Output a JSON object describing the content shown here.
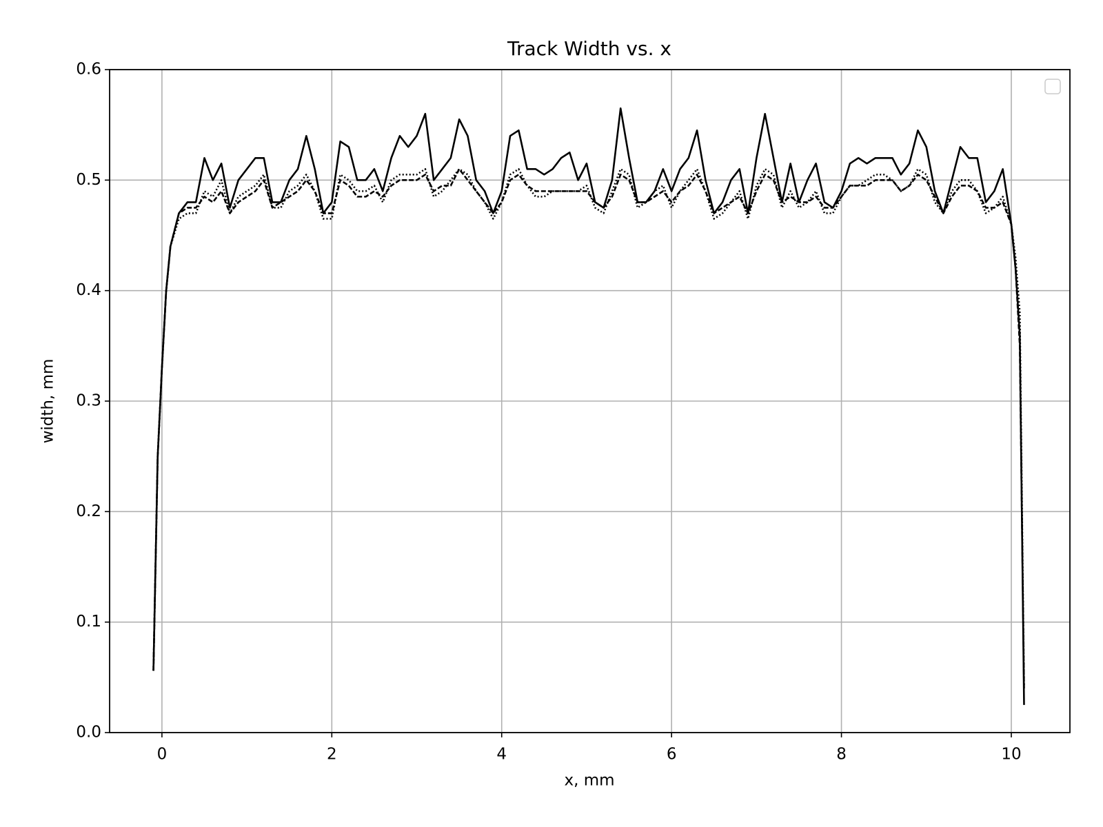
{
  "chart_data": {
    "type": "line",
    "title": "Track Width vs. x",
    "xlabel": "x, mm",
    "ylabel": "width, mm",
    "xlim": [
      -0.616,
      10.69
    ],
    "ylim": [
      0,
      0.6
    ],
    "xticks": [
      0,
      2,
      4,
      6,
      8,
      10
    ],
    "yticks": [
      {
        "value": 0,
        "label": "0.0"
      },
      0.1,
      0.2,
      0.3,
      0.4,
      0.5,
      0.6
    ],
    "grid": true,
    "x": [
      -0.1,
      -0.05,
      0,
      0.05,
      0.1,
      0.2,
      0.3,
      0.4,
      0.5,
      0.6,
      0.7,
      0.8,
      0.9,
      1.0,
      1.1,
      1.2,
      1.3,
      1.4,
      1.5,
      1.6,
      1.7,
      1.8,
      1.9,
      2.0,
      2.1,
      2.2,
      2.3,
      2.4,
      2.5,
      2.6,
      2.7,
      2.8,
      2.9,
      3.0,
      3.1,
      3.2,
      3.3,
      3.4,
      3.5,
      3.6,
      3.7,
      3.8,
      3.9,
      4.0,
      4.1,
      4.2,
      4.3,
      4.4,
      4.5,
      4.6,
      4.7,
      4.8,
      4.9,
      5.0,
      5.1,
      5.2,
      5.3,
      5.4,
      5.5,
      5.6,
      5.7,
      5.8,
      5.9,
      6.0,
      6.1,
      6.2,
      6.3,
      6.4,
      6.5,
      6.6,
      6.7,
      6.8,
      6.9,
      7.0,
      7.1,
      7.2,
      7.3,
      7.4,
      7.5,
      7.6,
      7.7,
      7.8,
      7.9,
      8.0,
      8.1,
      8.2,
      8.3,
      8.4,
      8.5,
      8.6,
      8.7,
      8.8,
      8.9,
      9.0,
      9.1,
      9.2,
      9.3,
      9.4,
      9.5,
      9.6,
      9.7,
      9.8,
      9.9,
      10.0,
      10.05,
      10.1,
      10.15
    ],
    "series": [
      {
        "color": "#000000",
        "linestyle": "solid",
        "values": [
          0.056,
          0.25,
          0.33,
          0.4,
          0.44,
          0.47,
          0.48,
          0.48,
          0.52,
          0.5,
          0.515,
          0.475,
          0.5,
          0.51,
          0.52,
          0.52,
          0.48,
          0.48,
          0.5,
          0.51,
          0.54,
          0.51,
          0.47,
          0.48,
          0.535,
          0.53,
          0.5,
          0.5,
          0.51,
          0.49,
          0.52,
          0.54,
          0.53,
          0.54,
          0.56,
          0.5,
          0.51,
          0.52,
          0.555,
          0.54,
          0.5,
          0.49,
          0.47,
          0.49,
          0.54,
          0.545,
          0.51,
          0.51,
          0.505,
          0.51,
          0.52,
          0.525,
          0.5,
          0.515,
          0.48,
          0.475,
          0.5,
          0.565,
          0.52,
          0.48,
          0.48,
          0.49,
          0.51,
          0.49,
          0.51,
          0.52,
          0.545,
          0.5,
          0.47,
          0.48,
          0.5,
          0.51,
          0.47,
          0.52,
          0.56,
          0.52,
          0.48,
          0.515,
          0.48,
          0.5,
          0.515,
          0.48,
          0.475,
          0.49,
          0.515,
          0.52,
          0.515,
          0.52,
          0.52,
          0.52,
          0.505,
          0.515,
          0.545,
          0.53,
          0.49,
          0.47,
          0.5,
          0.53,
          0.52,
          0.52,
          0.48,
          0.49,
          0.51,
          0.46,
          0.42,
          0.36,
          0.025
        ]
      },
      {
        "color": "#000000",
        "linestyle": "dashed",
        "values": [
          0.056,
          0.25,
          0.33,
          0.4,
          0.44,
          0.47,
          0.475,
          0.475,
          0.485,
          0.48,
          0.49,
          0.47,
          0.48,
          0.485,
          0.49,
          0.5,
          0.475,
          0.48,
          0.485,
          0.49,
          0.5,
          0.49,
          0.47,
          0.47,
          0.5,
          0.495,
          0.485,
          0.485,
          0.49,
          0.485,
          0.495,
          0.5,
          0.5,
          0.5,
          0.505,
          0.49,
          0.495,
          0.495,
          0.51,
          0.5,
          0.49,
          0.48,
          0.47,
          0.48,
          0.5,
          0.505,
          0.495,
          0.49,
          0.49,
          0.49,
          0.49,
          0.49,
          0.49,
          0.49,
          0.48,
          0.475,
          0.485,
          0.505,
          0.5,
          0.48,
          0.48,
          0.485,
          0.49,
          0.48,
          0.49,
          0.495,
          0.505,
          0.49,
          0.47,
          0.475,
          0.48,
          0.485,
          0.47,
          0.49,
          0.505,
          0.5,
          0.48,
          0.485,
          0.48,
          0.48,
          0.485,
          0.475,
          0.475,
          0.485,
          0.495,
          0.495,
          0.495,
          0.5,
          0.5,
          0.5,
          0.49,
          0.495,
          0.505,
          0.5,
          0.485,
          0.47,
          0.485,
          0.495,
          0.495,
          0.49,
          0.475,
          0.475,
          0.48,
          0.46,
          0.42,
          0.35,
          0.04
        ]
      },
      {
        "color": "#000000",
        "linestyle": "dotted",
        "values": [
          0.056,
          0.25,
          0.33,
          0.4,
          0.44,
          0.465,
          0.47,
          0.47,
          0.49,
          0.485,
          0.5,
          0.47,
          0.485,
          0.49,
          0.495,
          0.505,
          0.475,
          0.475,
          0.49,
          0.495,
          0.505,
          0.49,
          0.465,
          0.465,
          0.505,
          0.5,
          0.49,
          0.49,
          0.495,
          0.48,
          0.5,
          0.505,
          0.505,
          0.505,
          0.51,
          0.485,
          0.49,
          0.5,
          0.51,
          0.505,
          0.49,
          0.48,
          0.465,
          0.48,
          0.505,
          0.51,
          0.495,
          0.485,
          0.485,
          0.49,
          0.49,
          0.49,
          0.49,
          0.495,
          0.475,
          0.47,
          0.49,
          0.51,
          0.505,
          0.475,
          0.48,
          0.49,
          0.495,
          0.475,
          0.49,
          0.5,
          0.51,
          0.49,
          0.465,
          0.47,
          0.48,
          0.49,
          0.465,
          0.495,
          0.51,
          0.505,
          0.475,
          0.49,
          0.475,
          0.48,
          0.49,
          0.47,
          0.47,
          0.485,
          0.495,
          0.495,
          0.5,
          0.505,
          0.505,
          0.5,
          0.49,
          0.495,
          0.51,
          0.505,
          0.48,
          0.47,
          0.49,
          0.5,
          0.5,
          0.49,
          0.47,
          0.475,
          0.485,
          0.46,
          0.43,
          0.38,
          0.04
        ]
      }
    ]
  }
}
